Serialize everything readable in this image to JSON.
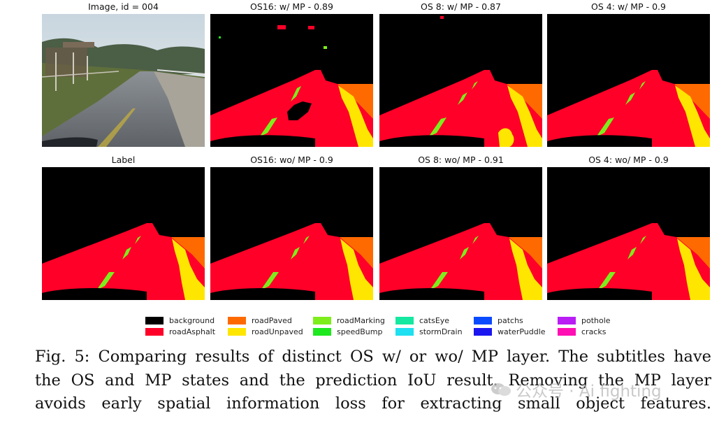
{
  "figure": {
    "panels": [
      {
        "title": "Image, id = 004",
        "kind": "photo"
      },
      {
        "title": "OS16: w/ MP - 0.89",
        "kind": "pred_noisy"
      },
      {
        "title": "OS 8: w/ MP - 0.87",
        "kind": "pred_puddle"
      },
      {
        "title": "OS 4: w/ MP - 0.9",
        "kind": "pred_clean"
      },
      {
        "title": "Label",
        "kind": "label"
      },
      {
        "title": "OS16: wo/ MP - 0.9",
        "kind": "pred_clean"
      },
      {
        "title": "OS 8: wo/ MP - 0.91",
        "kind": "pred_clean"
      },
      {
        "title": "OS 4: wo/ MP - 0.9",
        "kind": "pred_clean"
      }
    ],
    "legend": [
      {
        "label": "background",
        "color": "#000000"
      },
      {
        "label": "roadAsphalt",
        "color": "#ff0028"
      },
      {
        "label": "roadPaved",
        "color": "#ff6a00"
      },
      {
        "label": "roadUnpaved",
        "color": "#ffe600"
      },
      {
        "label": "roadMarking",
        "color": "#7dee1c"
      },
      {
        "label": "speedBump",
        "color": "#1ee81e"
      },
      {
        "label": "catsEye",
        "color": "#15e8a0"
      },
      {
        "label": "stormDrain",
        "color": "#1ee0f0"
      },
      {
        "label": "patchs",
        "color": "#0a4bff"
      },
      {
        "label": "waterPuddle",
        "color": "#1a16f0"
      },
      {
        "label": "pothole",
        "color": "#b91ef5"
      },
      {
        "label": "cracks",
        "color": "#ff0fb4"
      }
    ]
  },
  "caption": {
    "lines": [
      "Fig. 5: Comparing results of distinct OS w/ or wo/ MP layer. The subtitles have",
      "the OS and MP states and the prediction IoU result. Removing the MP layer",
      "avoids early spatial information loss for extracting small object features."
    ]
  },
  "watermark": {
    "text": "公众号 · Ai fighting"
  }
}
